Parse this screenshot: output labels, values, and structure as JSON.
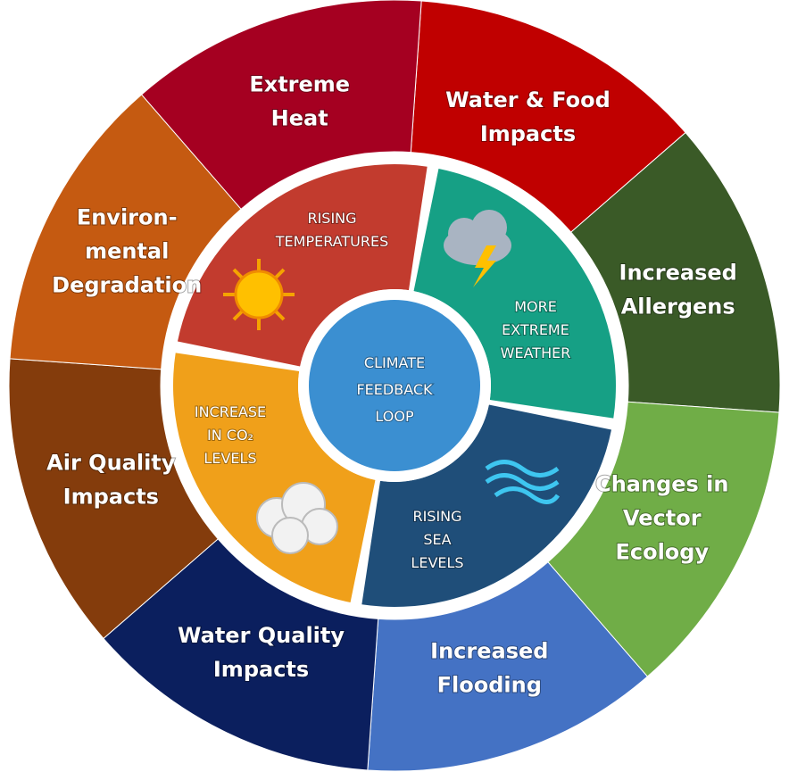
{
  "center": {
    "lines": [
      "CLIMATE",
      "FEEDBACK",
      "LOOP"
    ],
    "color": "#3b8fd1"
  },
  "inner": [
    {
      "lines": [
        "RISING",
        "TEMPERATURES"
      ],
      "color": "#c23b2e"
    },
    {
      "lines": [
        "MORE",
        "EXTREME",
        "WEATHER"
      ],
      "color": "#16a085"
    },
    {
      "lines": [
        "RISING",
        "SEA",
        "LEVELS"
      ],
      "color": "#1f4e79"
    },
    {
      "lines": [
        "INCREASE",
        "IN CO₂",
        "LEVELS"
      ],
      "color": "#f0a01a"
    }
  ],
  "outer": [
    {
      "lines": [
        "Water & Food",
        "Impacts"
      ],
      "color": "#c00000"
    },
    {
      "lines": [
        "Increased",
        "Allergens"
      ],
      "color": "#3a5a27"
    },
    {
      "lines": [
        "Changes in",
        "Vector",
        "Ecology"
      ],
      "color": "#70ad47"
    },
    {
      "lines": [
        "Increased",
        "Flooding"
      ],
      "color": "#4472c4"
    },
    {
      "lines": [
        "Water Quality",
        "Impacts"
      ],
      "color": "#0b1f5e"
    },
    {
      "lines": [
        "Air Quality",
        "Impacts"
      ],
      "color": "#843c0c"
    },
    {
      "lines": [
        "Environ-",
        "mental",
        "Degradation"
      ],
      "color": "#c55a11"
    },
    {
      "lines": [
        "Extreme",
        "Heat"
      ],
      "color": "#a50021"
    }
  ]
}
